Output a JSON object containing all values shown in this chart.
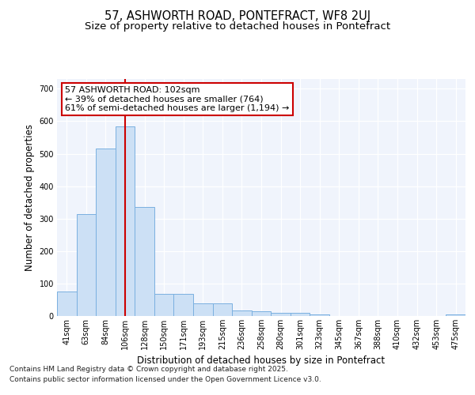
{
  "title": "57, ASHWORTH ROAD, PONTEFRACT, WF8 2UJ",
  "subtitle": "Size of property relative to detached houses in Pontefract",
  "xlabel": "Distribution of detached houses by size in Pontefract",
  "ylabel": "Number of detached properties",
  "categories": [
    "41sqm",
    "63sqm",
    "84sqm",
    "106sqm",
    "128sqm",
    "150sqm",
    "171sqm",
    "193sqm",
    "215sqm",
    "236sqm",
    "258sqm",
    "280sqm",
    "301sqm",
    "323sqm",
    "345sqm",
    "367sqm",
    "388sqm",
    "410sqm",
    "432sqm",
    "453sqm",
    "475sqm"
  ],
  "values": [
    75,
    315,
    515,
    585,
    335,
    68,
    68,
    40,
    40,
    18,
    15,
    10,
    10,
    5,
    0,
    0,
    0,
    0,
    0,
    0,
    5
  ],
  "bar_color": "#cce0f5",
  "bar_edge_color": "#7ab0e0",
  "vline_x_index": 3,
  "vline_color": "#cc0000",
  "annotation_line1": "57 ASHWORTH ROAD: 102sqm",
  "annotation_line2": "← 39% of detached houses are smaller (764)",
  "annotation_line3": "61% of semi-detached houses are larger (1,194) →",
  "annotation_box_color": "white",
  "annotation_box_edge_color": "#cc0000",
  "ylim": [
    0,
    730
  ],
  "yticks": [
    0,
    100,
    200,
    300,
    400,
    500,
    600,
    700
  ],
  "footer_line1": "Contains HM Land Registry data © Crown copyright and database right 2025.",
  "footer_line2": "Contains public sector information licensed under the Open Government Licence v3.0.",
  "background_color": "#ffffff",
  "plot_bg_color": "#f0f4fc",
  "grid_color": "#ffffff",
  "title_fontsize": 10.5,
  "subtitle_fontsize": 9.5,
  "tick_fontsize": 7,
  "ylabel_fontsize": 8.5,
  "xlabel_fontsize": 8.5,
  "footer_fontsize": 6.5,
  "ann_fontsize": 8
}
